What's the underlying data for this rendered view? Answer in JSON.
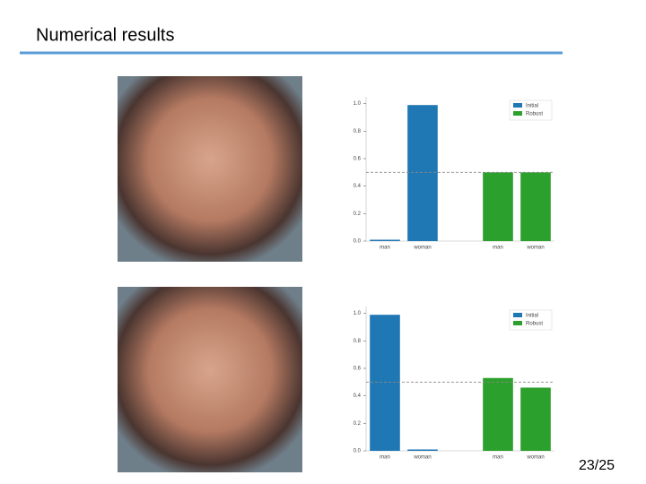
{
  "slide": {
    "title": "Numerical results",
    "page": "23/25"
  },
  "chart_data": [
    {
      "type": "bar",
      "categories": [
        "man",
        "woman",
        null,
        "man",
        "woman"
      ],
      "series": [
        {
          "name": "Initial",
          "color": "#1f77b4",
          "values": [
            0.01,
            0.99,
            null,
            null,
            null
          ]
        },
        {
          "name": "Robust",
          "color": "#2ca02c",
          "values": [
            null,
            null,
            null,
            0.5,
            0.5
          ]
        }
      ],
      "ylim": [
        0,
        1.05
      ],
      "yticks": [
        {
          "value": 0,
          "label": "0.0"
        },
        {
          "value": 0.2,
          "label": "0.2"
        },
        {
          "value": 0.4,
          "label": "0.4"
        },
        {
          "value": 0.6,
          "label": "0.6"
        },
        {
          "value": 0.8,
          "label": "0.8"
        },
        {
          "value": 1,
          "label": "1.0"
        }
      ],
      "hline": 0.5,
      "legend": "upper right"
    },
    {
      "type": "bar",
      "categories": [
        "man",
        "woman",
        null,
        "man",
        "woman"
      ],
      "series": [
        {
          "name": "Initial",
          "color": "#1f77b4",
          "values": [
            0.99,
            0.01,
            null,
            null,
            null
          ]
        },
        {
          "name": "Robust",
          "color": "#2ca02c",
          "values": [
            null,
            null,
            null,
            0.53,
            0.46
          ]
        }
      ],
      "ylim": [
        0,
        1.05
      ],
      "yticks": [
        {
          "value": 0,
          "label": "0.0"
        },
        {
          "value": 0.2,
          "label": "0.2"
        },
        {
          "value": 0.4,
          "label": "0.4"
        },
        {
          "value": 0.6,
          "label": "0.6"
        },
        {
          "value": 0.8,
          "label": "0.8"
        },
        {
          "value": 1,
          "label": "1.0"
        }
      ],
      "hline": 0.5,
      "legend": "upper right"
    }
  ]
}
